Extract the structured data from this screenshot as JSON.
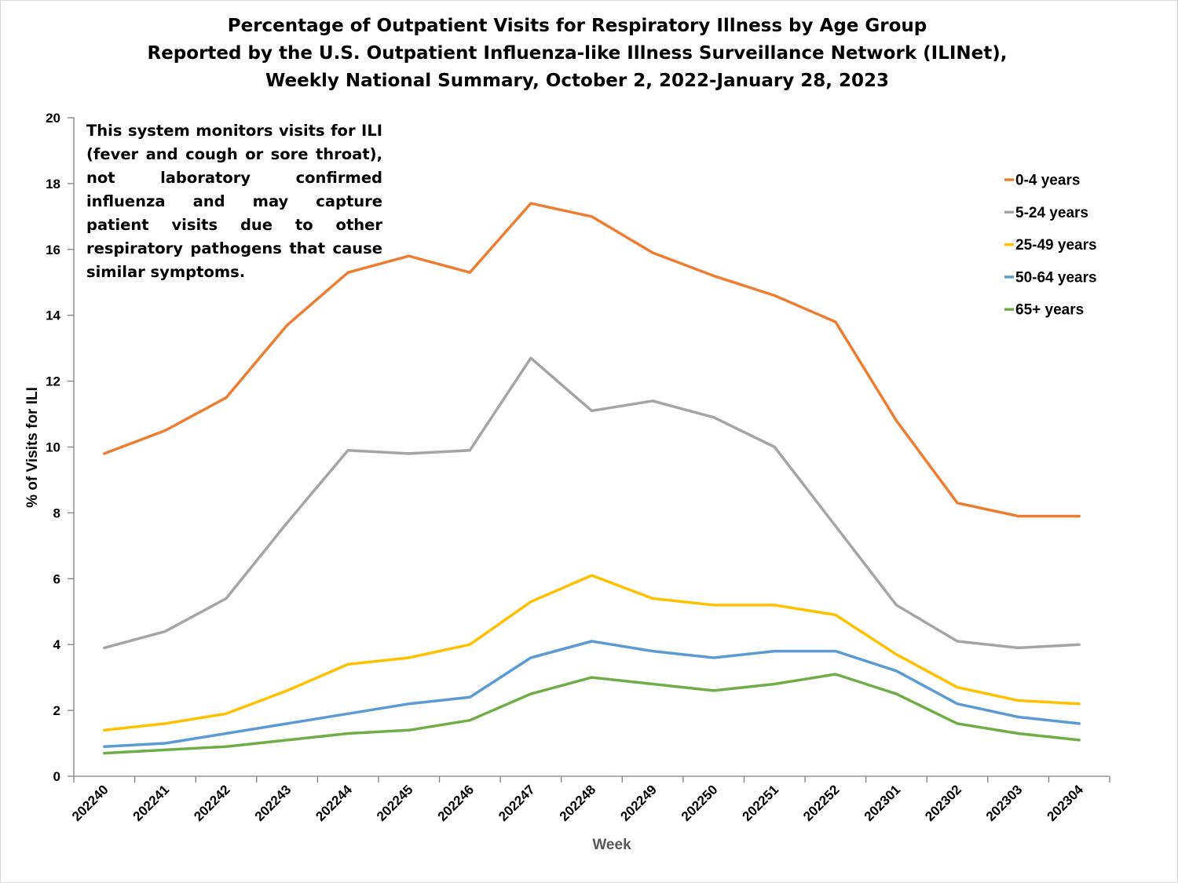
{
  "chart_data": {
    "type": "line",
    "title": [
      "Percentage of Outpatient Visits for Respiratory Illness by Age Group",
      "Reported by the U.S. Outpatient Influenza-like Illness Surveillance Network (ILINet),",
      "Weekly National Summary, October 2, 2022-January 28, 2023"
    ],
    "annotation": "This system monitors visits for ILI (fever and cough or sore throat), not laboratory confirmed influenza and may capture patient visits due to other respiratory pathogens that cause similar symptoms.",
    "xlabel": "Week",
    "ylabel": "% of Visits for ILI",
    "ylim": [
      0,
      20
    ],
    "yticks": [
      0,
      2,
      4,
      6,
      8,
      10,
      12,
      14,
      16,
      18,
      20
    ],
    "grid": false,
    "legend_position": "top-right",
    "categories": [
      "202240",
      "202241",
      "202242",
      "202243",
      "202244",
      "202245",
      "202246",
      "202247",
      "202248",
      "202249",
      "202250",
      "202251",
      "202252",
      "202301",
      "202302",
      "202303",
      "202304"
    ],
    "series": [
      {
        "name": "0-4 years",
        "color": "#ed7d31",
        "values": [
          9.8,
          10.5,
          11.5,
          13.7,
          15.3,
          15.8,
          15.3,
          17.4,
          17.0,
          15.9,
          15.2,
          14.6,
          13.8,
          10.8,
          8.3,
          7.9,
          7.9
        ]
      },
      {
        "name": "5-24 years",
        "color": "#a5a5a5",
        "values": [
          3.9,
          4.4,
          5.4,
          7.7,
          9.9,
          9.8,
          9.9,
          12.7,
          11.1,
          11.4,
          10.9,
          10.0,
          7.6,
          5.2,
          4.1,
          3.9,
          4.0
        ]
      },
      {
        "name": "25-49 years",
        "color": "#ffc000",
        "values": [
          1.4,
          1.6,
          1.9,
          2.6,
          3.4,
          3.6,
          4.0,
          5.3,
          6.1,
          5.4,
          5.2,
          5.2,
          4.9,
          3.7,
          2.7,
          2.3,
          2.2
        ]
      },
      {
        "name": "50-64 years",
        "color": "#5b9bd5",
        "values": [
          0.9,
          1.0,
          1.3,
          1.6,
          1.9,
          2.2,
          2.4,
          3.6,
          4.1,
          3.8,
          3.6,
          3.8,
          3.8,
          3.2,
          2.2,
          1.8,
          1.6
        ]
      },
      {
        "name": "65+ years",
        "color": "#70ad47",
        "values": [
          0.7,
          0.8,
          0.9,
          1.1,
          1.3,
          1.4,
          1.7,
          2.5,
          3.0,
          2.8,
          2.6,
          2.8,
          3.1,
          2.5,
          1.6,
          1.3,
          1.1
        ]
      }
    ],
    "axis_title_color": "#595959"
  }
}
